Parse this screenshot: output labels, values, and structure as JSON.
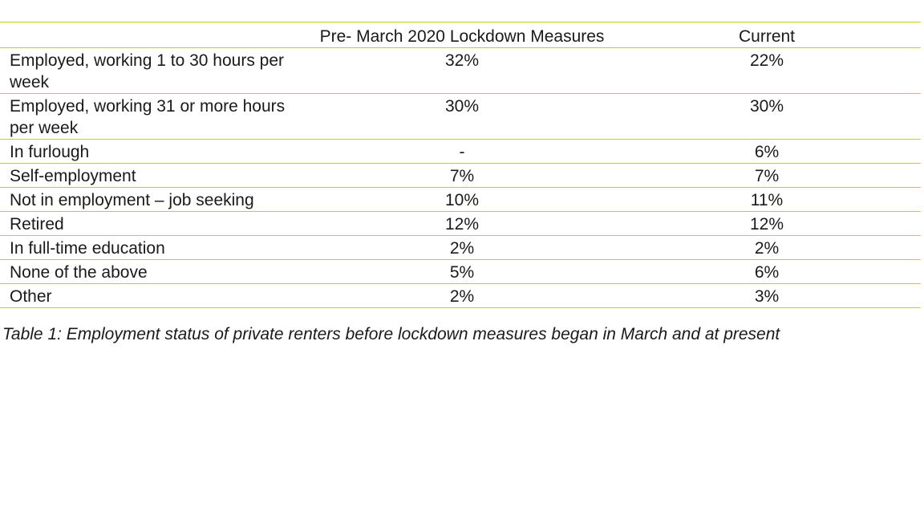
{
  "table": {
    "headers": {
      "label": "",
      "pre": "Pre- March 2020 Lockdown Measures",
      "current": "Current"
    },
    "rows": [
      {
        "label": "Employed, working 1 to 30 hours per week",
        "pre": "32%",
        "current": "22%"
      },
      {
        "label": "Employed, working 31 or more hours per week",
        "pre": "30%",
        "current": "30%"
      },
      {
        "label": "In furlough",
        "pre": "-",
        "current": "6%"
      },
      {
        "label": "Self-employment",
        "pre": "7%",
        "current": "7%"
      },
      {
        "label": "Not in employment – job seeking",
        "pre": "10%",
        "current": "11%"
      },
      {
        "label": "Retired",
        "pre": "12%",
        "current": "12%"
      },
      {
        "label": "In full-time education",
        "pre": "2%",
        "current": "2%"
      },
      {
        "label": "None of the above",
        "pre": "5%",
        "current": "6%"
      },
      {
        "label": "Other",
        "pre": "2%",
        "current": "3%"
      }
    ]
  },
  "caption": "Table 1: Employment status of private renters before lockdown measures began in March and at present",
  "colors": {
    "rule": "#c8d400",
    "text": "#1a1a1a",
    "background": "#ffffff"
  }
}
